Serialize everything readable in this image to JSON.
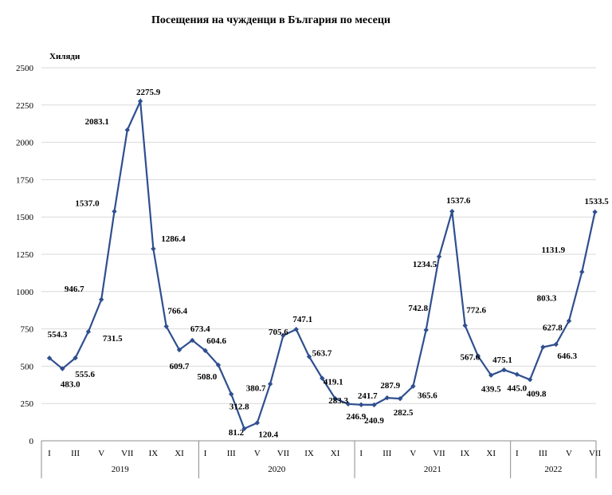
{
  "chart_data": {
    "type": "line",
    "title": "Посещения на чужденци в България по месеци",
    "ylabel": "Хиляди",
    "ylim": [
      0,
      2500
    ],
    "yticks": [
      0,
      250,
      500,
      750,
      1000,
      1250,
      1500,
      1750,
      2000,
      2250,
      2500
    ],
    "grid": true,
    "color": "#2f4f8f",
    "marker": "diamond",
    "years": [
      {
        "label": "2019",
        "months": 12
      },
      {
        "label": "2020",
        "months": 12
      },
      {
        "label": "2021",
        "months": 12
      },
      {
        "label": "2022",
        "months": 7
      }
    ],
    "x_tick_labels": [
      "I",
      "III",
      "V",
      "VII",
      "IX",
      "XI"
    ],
    "series": [
      {
        "values": [
          554.3,
          483.0,
          555.6,
          731.5,
          946.7,
          1537.0,
          2083.1,
          2275.9,
          1286.4,
          766.4,
          609.7,
          673.4,
          604.6,
          508.0,
          312.8,
          81.2,
          120.4,
          380.7,
          705.6,
          747.1,
          563.7,
          419.1,
          283.3,
          246.9,
          241.7,
          240.9,
          287.9,
          282.5,
          365.6,
          742.8,
          1234.5,
          1537.6,
          772.6,
          567.6,
          439.5,
          475.1,
          445.0,
          409.8,
          627.8,
          646.3,
          803.3,
          1131.9,
          1533.5
        ]
      }
    ],
    "data_labels": [
      "554.3",
      "483.0",
      "555.6",
      "731.5",
      "946.7",
      "1537.0",
      "2083.1",
      "2275.9",
      "1286.4",
      "766.4",
      "609.7",
      "673.4",
      "604.6",
      "508.0",
      "312.8",
      "81.2",
      "120.4",
      "380.7",
      "705.6",
      "747.1",
      "563.7",
      "419.1",
      "283.3",
      "246.9",
      "241.7",
      "240.9",
      "287.9",
      "282.5",
      "365.6",
      "742.8",
      "1234.5",
      "1537.6",
      "772.6",
      "567.6",
      "439.5",
      "475.1",
      "445.0",
      "409.8",
      "627.8",
      "646.3",
      "803.3",
      "1131.9",
      "1533.5"
    ]
  }
}
